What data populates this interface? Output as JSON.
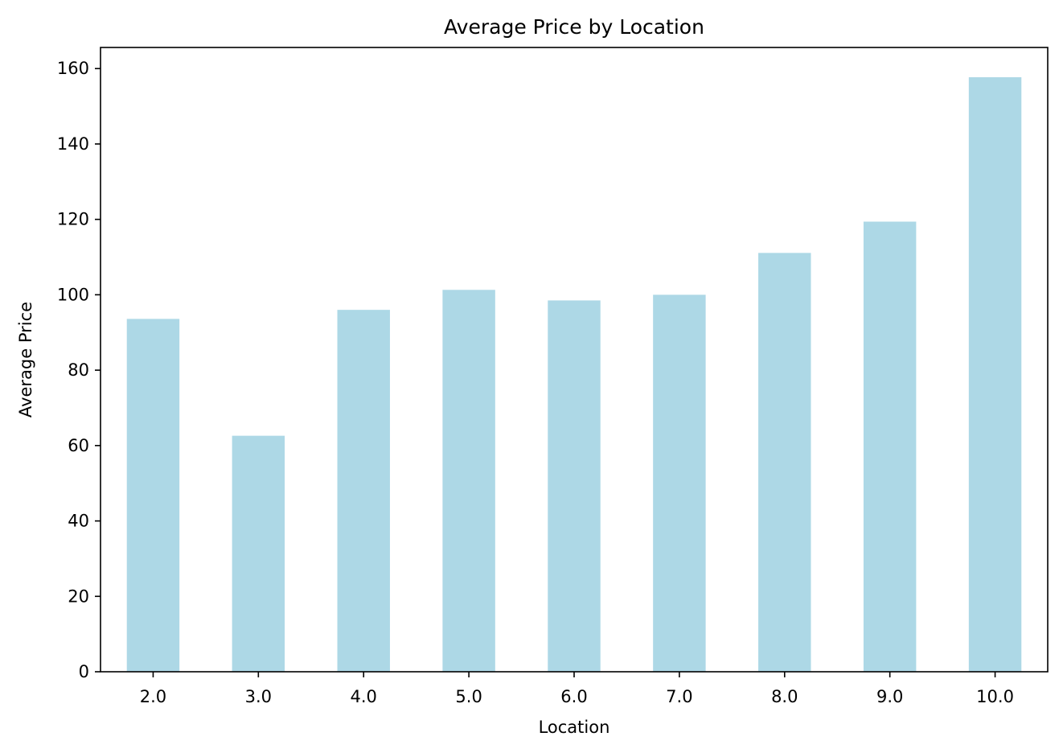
{
  "chart_data": {
    "type": "bar",
    "title": "Average Price by Location",
    "xlabel": "Location",
    "ylabel": "Average Price",
    "categories": [
      "2.0",
      "3.0",
      "4.0",
      "5.0",
      "6.0",
      "7.0",
      "8.0",
      "9.0",
      "10.0"
    ],
    "values": [
      93.6,
      62.6,
      96.0,
      101.3,
      98.5,
      100.0,
      111.1,
      119.4,
      157.7
    ],
    "yticks": [
      0,
      20,
      40,
      60,
      80,
      100,
      120,
      140,
      160
    ],
    "ylim": [
      0,
      165.6
    ],
    "grid": false,
    "legend": "none",
    "bar_color": "#add8e6"
  }
}
